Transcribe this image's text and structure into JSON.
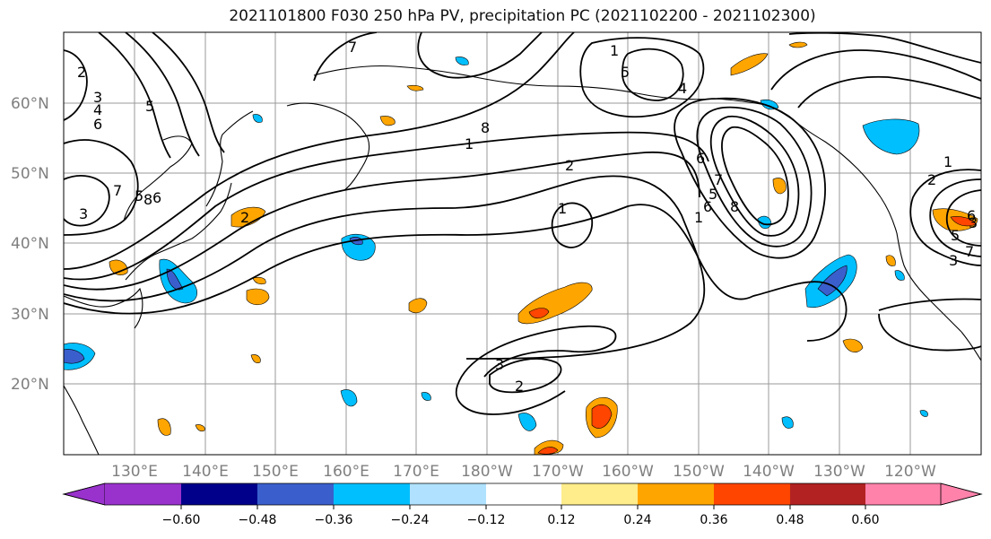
{
  "title": "2021101800 F030 250 hPa PV, precipitation PC (2021102200 - 2021102300)",
  "lat_labels": [
    "60°N",
    "50°N",
    "40°N",
    "30°N",
    "20°N"
  ],
  "lon_labels": [
    "130°E",
    "140°E",
    "150°E",
    "160°E",
    "170°E",
    "180°W",
    "170°W",
    "160°W",
    "150°W",
    "140°W",
    "130°W",
    "120°W"
  ],
  "colorbar": {
    "colors": [
      "#9932cc",
      "#00008b",
      "#3a5fcd",
      "#00bfff",
      "#b0e2ff",
      "#ffffff",
      "#ffec8b",
      "#ffa500",
      "#ff4500",
      "#b22222",
      "#ff82ab"
    ],
    "tick_labels": [
      "−0.60",
      "−0.48",
      "−0.36",
      "−0.24",
      "−0.12",
      "0.12",
      "0.24",
      "0.36",
      "0.48",
      "0.60"
    ]
  },
  "contour_labels": [
    "2",
    "3",
    "4",
    "5",
    "6",
    "7",
    "5",
    "8",
    "6",
    "3",
    "2",
    "1",
    "8",
    "7",
    "1",
    "2",
    "1",
    "4",
    "5",
    "6",
    "7",
    "5",
    "8",
    "6",
    "1",
    "3",
    "1",
    "2",
    "5",
    "3",
    "6",
    "7",
    "3",
    "2"
  ],
  "legend_colors": {
    "land_line": "#000000",
    "grid": "#9a9a9a"
  }
}
